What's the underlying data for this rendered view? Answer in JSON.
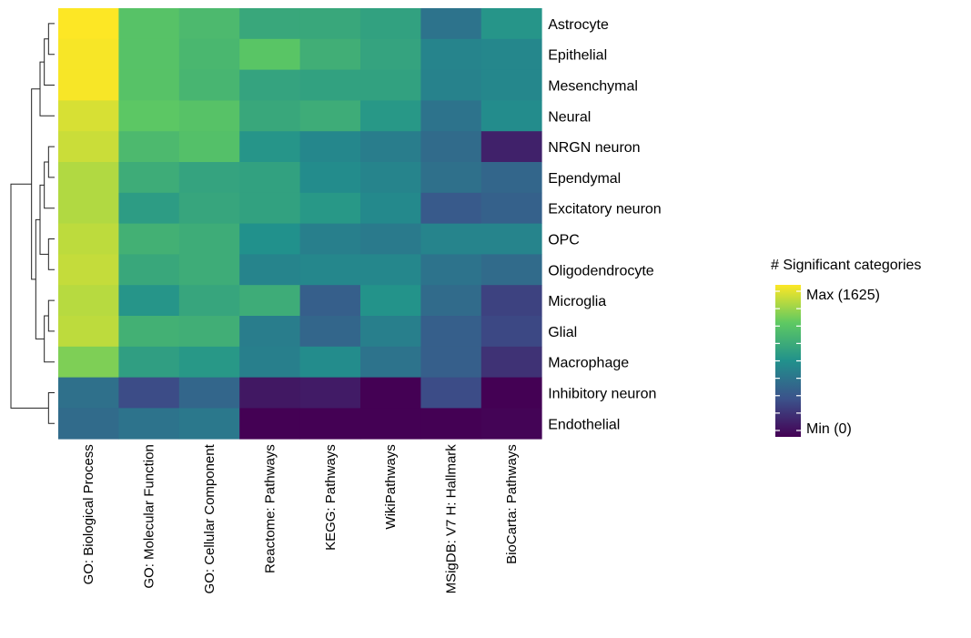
{
  "chart_data": {
    "type": "heatmap",
    "title": "",
    "xlabel": "",
    "ylabel": "",
    "categories": [
      "GO: Biological Process",
      "GO: Molecular Function",
      "GO: Cellular Component",
      "Reactome: Pathways",
      "KEGG: Pathways",
      "WikiPathways",
      "MSigDB: V7 H: Hallmark",
      "BioCarta: Pathways"
    ],
    "rows": [
      "Astrocyte",
      "Epithelial",
      "Mesenchymal",
      "Neural",
      "NRGN neuron",
      "Ependymal",
      "Excitatory neuron",
      "OPC",
      "Oligodendrocyte",
      "Microglia",
      "Glial",
      "Macrophage",
      "Inhibitory neuron",
      "Endothelial"
    ],
    "value_scale": "normalized 0-1 (0 = Min, 1 = Max)",
    "values": [
      [
        1.0,
        0.72,
        0.68,
        0.6,
        0.6,
        0.57,
        0.38,
        0.52
      ],
      [
        0.99,
        0.72,
        0.67,
        0.73,
        0.63,
        0.58,
        0.45,
        0.46
      ],
      [
        0.99,
        0.72,
        0.66,
        0.58,
        0.57,
        0.57,
        0.44,
        0.46
      ],
      [
        0.94,
        0.74,
        0.72,
        0.6,
        0.62,
        0.53,
        0.38,
        0.48
      ],
      [
        0.92,
        0.68,
        0.71,
        0.52,
        0.46,
        0.42,
        0.35,
        0.1
      ],
      [
        0.88,
        0.62,
        0.58,
        0.57,
        0.48,
        0.45,
        0.37,
        0.33
      ],
      [
        0.88,
        0.55,
        0.59,
        0.57,
        0.53,
        0.47,
        0.28,
        0.31
      ],
      [
        0.9,
        0.64,
        0.62,
        0.5,
        0.43,
        0.41,
        0.45,
        0.45
      ],
      [
        0.91,
        0.6,
        0.62,
        0.45,
        0.46,
        0.46,
        0.38,
        0.35
      ],
      [
        0.89,
        0.52,
        0.59,
        0.62,
        0.3,
        0.51,
        0.35,
        0.2
      ],
      [
        0.9,
        0.64,
        0.63,
        0.42,
        0.33,
        0.43,
        0.3,
        0.22
      ],
      [
        0.8,
        0.56,
        0.53,
        0.43,
        0.48,
        0.38,
        0.3,
        0.15
      ],
      [
        0.37,
        0.23,
        0.33,
        0.07,
        0.08,
        0.0,
        0.23,
        0.0
      ],
      [
        0.35,
        0.38,
        0.4,
        0.0,
        0.0,
        0.0,
        0.0,
        0.01
      ]
    ],
    "colormap": [
      "#440154",
      "#3b528b",
      "#21918c",
      "#5ec962",
      "#fde725"
    ],
    "legend": {
      "title": "# Significant categories",
      "max_label": "Max (1625)",
      "min_label": "Min (0)",
      "placement": "right"
    },
    "dendrogram": "row",
    "grid": false
  }
}
